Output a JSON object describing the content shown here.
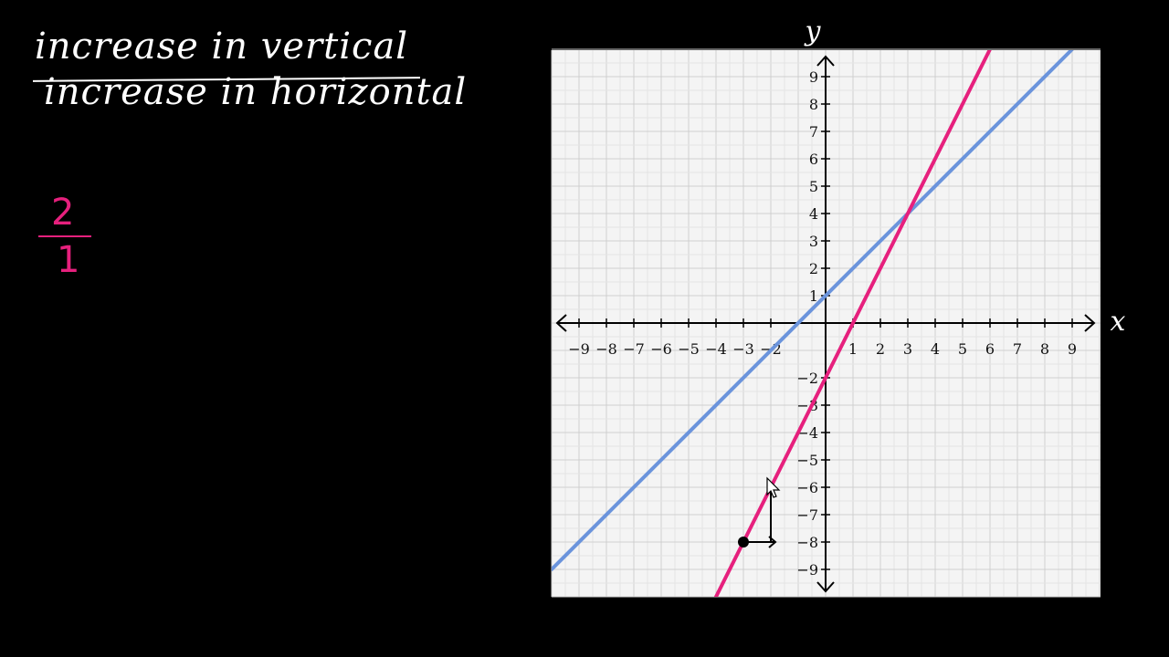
{
  "notes": {
    "numerator_text": "increase in vertical",
    "denominator_text": "increase in horizontal",
    "slope_numerator": "2",
    "slope_denominator": "1"
  },
  "colors": {
    "pink": "#e6207d",
    "blue": "#6b94dc",
    "background": "#000000",
    "grid_bg": "#f4f4f4"
  },
  "chart_data": {
    "type": "line",
    "xlabel": "x",
    "ylabel": "y",
    "xlim": [
      -10,
      10
    ],
    "ylim": [
      -10,
      10
    ],
    "grid": true,
    "grid_step": 0.5,
    "x_ticks": [
      -9,
      -8,
      -7,
      -6,
      -5,
      -4,
      -3,
      -2,
      1,
      2,
      3,
      4,
      5,
      6,
      7,
      8,
      9
    ],
    "y_ticks": [
      -9,
      -8,
      -7,
      -6,
      -5,
      -4,
      -3,
      -2,
      1,
      2,
      3,
      4,
      5,
      6,
      7,
      8,
      9
    ],
    "series": [
      {
        "color": "#6b94dc",
        "slope": 1,
        "intercept": 1,
        "x_range": [
          -10,
          9
        ]
      },
      {
        "color": "#e6207d",
        "slope": 2,
        "intercept": -2,
        "x_range": [
          -4,
          6
        ]
      }
    ],
    "annotations": {
      "point": [
        -3,
        -8
      ],
      "rise_from": [
        -2,
        -8
      ],
      "rise_to": [
        -2,
        -6
      ],
      "run_from": [
        -3,
        -8
      ],
      "run_to": [
        -2,
        -8
      ]
    }
  }
}
